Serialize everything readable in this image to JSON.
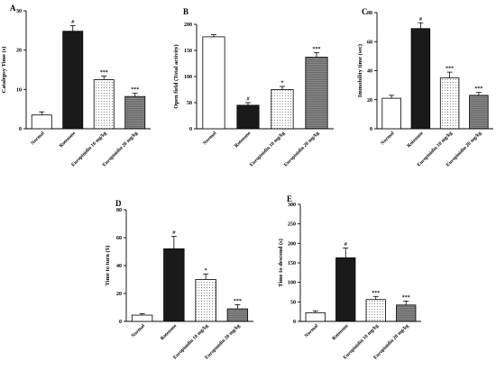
{
  "chart_data": [
    {
      "type": "bar",
      "panel": "A",
      "ylabel": "Catalepsy Time (s)",
      "ylim": [
        0,
        30
      ],
      "yticks": [
        "0",
        "10",
        "20",
        "30"
      ],
      "categories": [
        "Normal",
        "Rotenone",
        "Europinidin 10 mg/kg",
        "Europinidin 20 mg/kg"
      ],
      "values": [
        3.5,
        24.8,
        12.5,
        8.2
      ],
      "errors": [
        0.8,
        1.4,
        0.9,
        0.8
      ],
      "annotations": [
        "",
        "#",
        "***",
        "***"
      ]
    },
    {
      "type": "bar",
      "panel": "B",
      "ylabel": "Open field (Total activity)",
      "ylim": [
        0,
        200
      ],
      "yticks": [
        "0",
        "50",
        "100",
        "150",
        "200"
      ],
      "categories": [
        "Normal",
        "Rotenone",
        "Europinidin 10 mg/kg",
        "Europinidin 20 mg/kg"
      ],
      "values": [
        176,
        45,
        75,
        137
      ],
      "errors": [
        4,
        5,
        6,
        9
      ],
      "annotations": [
        "",
        "#",
        "*",
        "***"
      ]
    },
    {
      "type": "bar",
      "panel": "C",
      "ylabel": "Immobility time (sec)",
      "ylim": [
        0,
        80
      ],
      "yticks": [
        "0",
        "20",
        "40",
        "60",
        "80"
      ],
      "categories": [
        "Normal",
        "Rotenone",
        "Europinidin 10 mg/kg",
        "Europinidin 20 mg/kg"
      ],
      "values": [
        21,
        69,
        35,
        23
      ],
      "errors": [
        2,
        4,
        4,
        2
      ],
      "annotations": [
        "",
        "#",
        "***",
        "***"
      ]
    },
    {
      "type": "bar",
      "panel": "D",
      "ylabel": "Time to turn (S)",
      "ylim": [
        0,
        80
      ],
      "yticks": [
        "0",
        "20",
        "40",
        "60",
        "80"
      ],
      "categories": [
        "Normal",
        "Rotenone",
        "Europinidin 10 mg/kg",
        "Europinidin 20 mg/kg"
      ],
      "values": [
        4.5,
        52,
        30,
        9
      ],
      "errors": [
        1,
        9,
        4,
        3
      ],
      "annotations": [
        "",
        "#",
        "*",
        "***"
      ]
    },
    {
      "type": "bar",
      "panel": "E",
      "ylabel": "Time to descend (s)",
      "ylim": [
        0,
        300
      ],
      "yticks": [
        "0",
        "50",
        "100",
        "150",
        "200",
        "250",
        "300"
      ],
      "categories": [
        "Normal",
        "Rotenone",
        "Europinidin 10 mg/kg",
        "Europinidin 20 mg/kg"
      ],
      "values": [
        22,
        163,
        56,
        42
      ],
      "errors": [
        5,
        25,
        8,
        10
      ],
      "annotations": [
        "",
        "#",
        "***",
        "***"
      ]
    }
  ]
}
